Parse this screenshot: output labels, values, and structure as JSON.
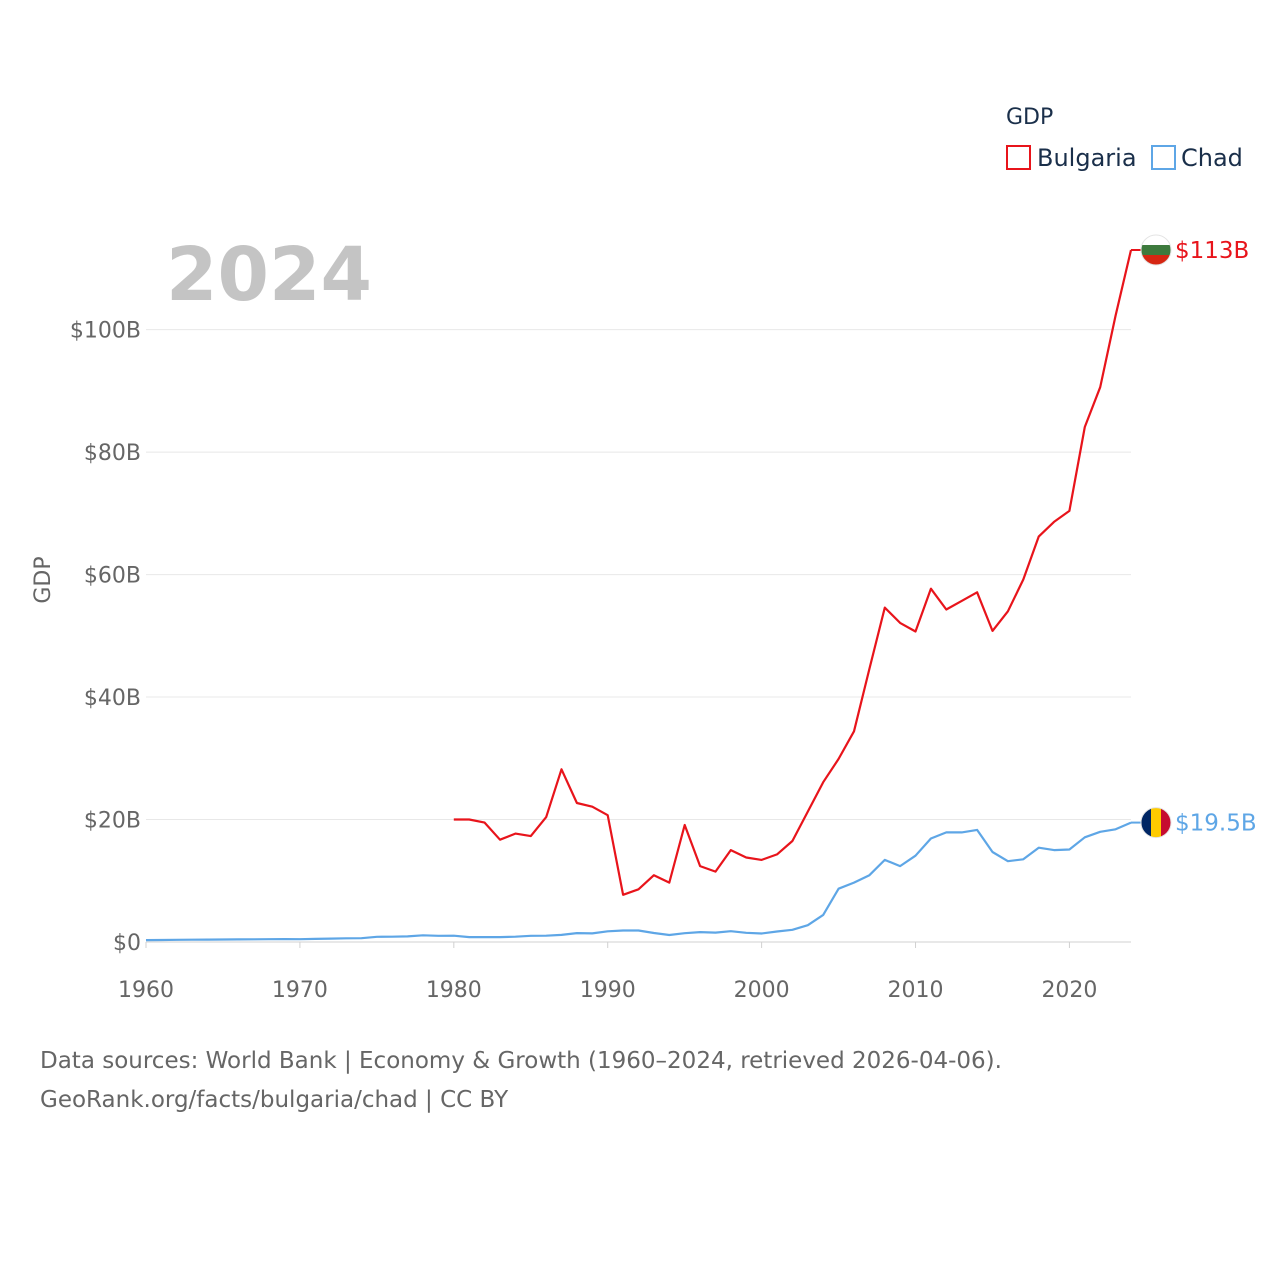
{
  "chart_data": {
    "type": "line",
    "legend_title": "GDP",
    "legend_position": "top-right",
    "year_label": "2024",
    "ylabel": "GDP",
    "xlabel": "",
    "xlim": [
      1960,
      2024
    ],
    "ylim": [
      0,
      113
    ],
    "x_ticks": [
      "1960",
      "1970",
      "1980",
      "1990",
      "2000",
      "2010",
      "2020"
    ],
    "y_ticks": [
      {
        "value": 0,
        "label": "$0"
      },
      {
        "value": 20,
        "label": "$20B"
      },
      {
        "value": 40,
        "label": "$40B"
      },
      {
        "value": 60,
        "label": "$60B"
      },
      {
        "value": 80,
        "label": "$80B"
      },
      {
        "value": 100,
        "label": "$100B"
      }
    ],
    "units": "billions USD",
    "series": [
      {
        "name": "Bulgaria",
        "color": "#e8141b",
        "end_label": "$113B",
        "flag_colors": [
          "#ffffff",
          "#3d7a3d",
          "#d62612"
        ],
        "x": [
          1980,
          1981,
          1982,
          1983,
          1984,
          1985,
          1986,
          1987,
          1988,
          1989,
          1990,
          1991,
          1992,
          1993,
          1994,
          1995,
          1996,
          1997,
          1998,
          1999,
          2000,
          2001,
          2002,
          2003,
          2004,
          2005,
          2006,
          2007,
          2008,
          2009,
          2010,
          2011,
          2012,
          2013,
          2014,
          2015,
          2016,
          2017,
          2018,
          2019,
          2020,
          2021,
          2022,
          2023,
          2024
        ],
        "values": [
          20.0,
          20.0,
          19.5,
          16.7,
          17.7,
          17.3,
          20.4,
          28.2,
          22.7,
          22.1,
          20.7,
          7.7,
          8.6,
          10.9,
          9.7,
          19.1,
          12.4,
          11.5,
          15.0,
          13.8,
          13.4,
          14.3,
          16.5,
          21.3,
          26.1,
          29.9,
          34.4,
          44.6,
          54.6,
          52.1,
          50.7,
          57.7,
          54.3,
          55.7,
          57.1,
          50.8,
          54.0,
          59.2,
          66.2,
          68.6,
          70.4,
          84.1,
          90.6,
          102.3,
          113.0
        ]
      },
      {
        "name": "Chad",
        "color": "#5ea6e6",
        "end_label": "$19.5B",
        "flag_colors": [
          "#002664",
          "#fecb00",
          "#c60c30"
        ],
        "x": [
          1960,
          1961,
          1962,
          1963,
          1964,
          1965,
          1966,
          1967,
          1968,
          1969,
          1970,
          1971,
          1972,
          1973,
          1974,
          1975,
          1976,
          1977,
          1978,
          1979,
          1980,
          1981,
          1982,
          1983,
          1984,
          1985,
          1986,
          1987,
          1988,
          1989,
          1990,
          1991,
          1992,
          1993,
          1994,
          1995,
          1996,
          1997,
          1998,
          1999,
          2000,
          2001,
          2002,
          2003,
          2004,
          2005,
          2006,
          2007,
          2008,
          2009,
          2010,
          2011,
          2012,
          2013,
          2014,
          2015,
          2016,
          2017,
          2018,
          2019,
          2020,
          2021,
          2022,
          2023,
          2024
        ],
        "values": [
          0.31,
          0.33,
          0.36,
          0.37,
          0.39,
          0.41,
          0.43,
          0.44,
          0.45,
          0.47,
          0.46,
          0.51,
          0.55,
          0.6,
          0.62,
          0.85,
          0.87,
          0.92,
          1.1,
          1.01,
          1.03,
          0.8,
          0.8,
          0.8,
          0.87,
          1.02,
          1.03,
          1.16,
          1.45,
          1.41,
          1.74,
          1.88,
          1.88,
          1.47,
          1.15,
          1.44,
          1.62,
          1.54,
          1.76,
          1.5,
          1.39,
          1.71,
          1.99,
          2.74,
          4.42,
          8.7,
          9.7,
          10.9,
          13.4,
          12.4,
          14.1,
          16.9,
          17.9,
          17.9,
          18.3,
          14.7,
          13.2,
          13.5,
          15.4,
          15.0,
          15.1,
          17.1,
          18.0,
          18.4,
          19.5
        ]
      }
    ]
  },
  "footer": {
    "line1": "Data sources: World Bank | Economy & Growth (1960–2024, retrieved 2026-04-06).",
    "line2": "GeoRank.org/facts/bulgaria/chad | CC BY"
  }
}
